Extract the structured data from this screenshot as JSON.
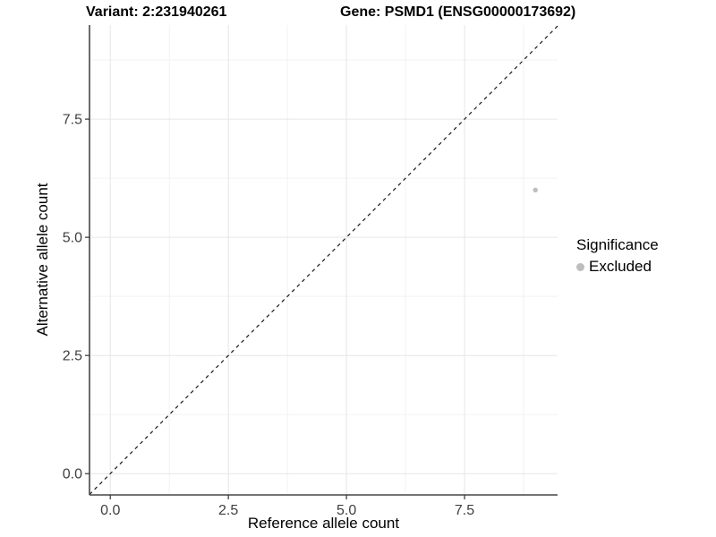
{
  "titles": {
    "variant": "Variant: 2:231940261",
    "gene": "Gene: PSMD1 (ENSG00000173692)"
  },
  "chart_data": {
    "type": "scatter",
    "title_left": "Variant: 2:231940261",
    "title_right": "Gene: PSMD1 (ENSG00000173692)",
    "xlabel": "Reference allele count",
    "ylabel": "Alternative allele count",
    "xlim": [
      -0.44,
      9.47
    ],
    "ylim": [
      -0.45,
      9.49
    ],
    "x_ticks": {
      "values": [
        0,
        2.5,
        5,
        7.5
      ],
      "labels": [
        "0.0",
        "2.5",
        "5.0",
        "7.5"
      ]
    },
    "y_ticks": {
      "values": [
        0,
        2.5,
        5,
        7.5
      ],
      "labels": [
        "0.0",
        "2.5",
        "5.0",
        "7.5"
      ]
    },
    "x_minor_ticks": [
      1.25,
      3.75,
      6.25,
      8.75
    ],
    "y_minor_ticks": [
      1.25,
      3.75,
      6.25,
      8.75
    ],
    "grid": {
      "show": true,
      "major_color": "#e6e6e6",
      "minor_color": "#f2f2f2"
    },
    "reference_line": {
      "slope": 1,
      "intercept": 0,
      "style": "dashed",
      "color": "#1a1a1a"
    },
    "series": [
      {
        "name": "Excluded",
        "color": "#bdbdbd",
        "points": [
          {
            "x": 9,
            "y": 6
          }
        ]
      }
    ],
    "legend": {
      "title": "Significance",
      "position": "right",
      "items": [
        {
          "label": "Excluded",
          "color": "#bdbdbd"
        }
      ]
    },
    "colors": {
      "axis_line": "#464646",
      "tick_mark": "#333333",
      "tick_label": "#404040"
    }
  }
}
